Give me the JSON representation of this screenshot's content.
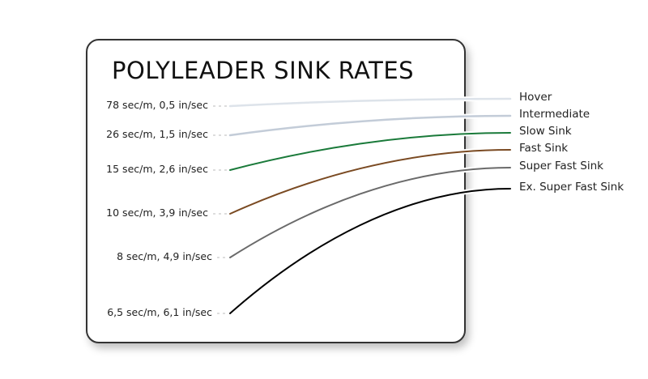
{
  "title": "POLYLEADER SINK RATES",
  "lines": [
    {
      "name": "Hover",
      "rate": "78 sec/m, 0,5 in/sec",
      "color": "#dde3ea"
    },
    {
      "name": "Intermediate",
      "rate": "26 sec/m, 1,5 in/sec",
      "color": "#c3ccd8"
    },
    {
      "name": "Slow Sink",
      "rate": "15 sec/m, 2,6 in/sec",
      "color": "#1a7a3a"
    },
    {
      "name": "Fast Sink",
      "rate": "10 sec/m, 3,9 in/sec",
      "color": "#7a4a22"
    },
    {
      "name": "Super Fast Sink",
      "rate": "8 sec/m, 4,9 in/sec",
      "color": "#6a6a6a"
    },
    {
      "name": "Ex. Super Fast Sink",
      "rate": "6,5 sec/m, 6,1 in/sec",
      "color": "#000000"
    }
  ]
}
